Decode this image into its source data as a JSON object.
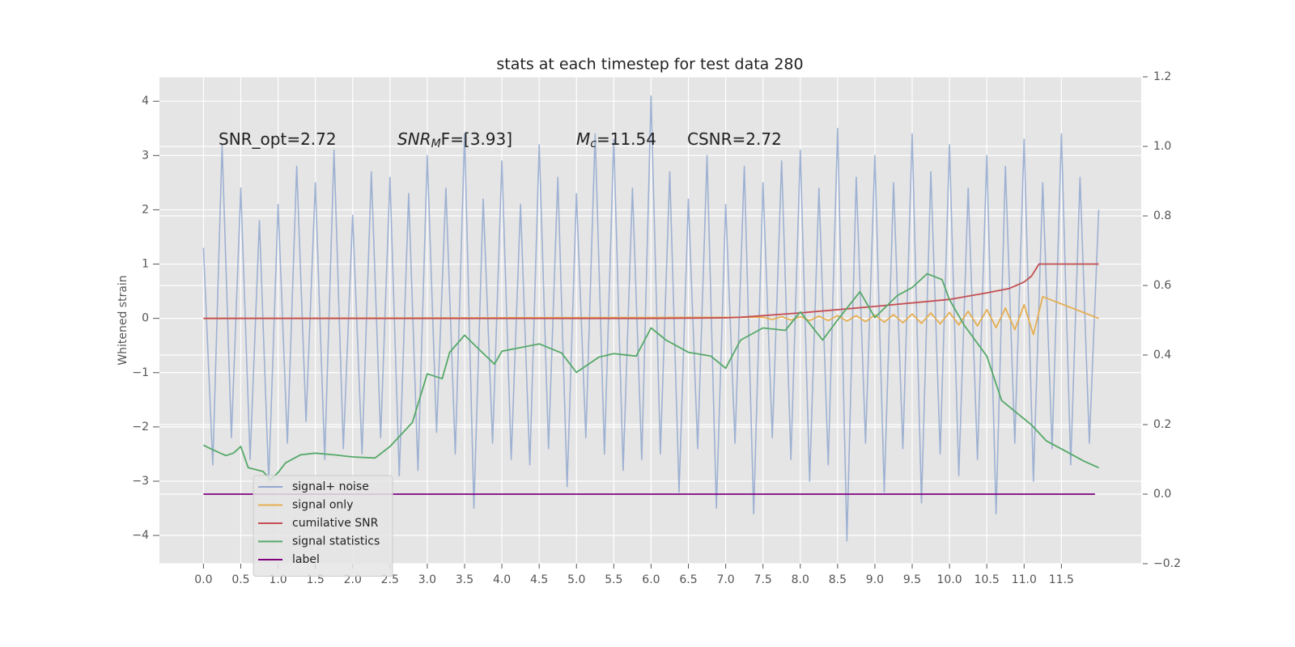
{
  "chart_data": {
    "type": "line",
    "title": "stats at each timestep for test data 280",
    "ylabel": "Whitened strain",
    "annotations": [
      {
        "base": "SNR_opt=2.72"
      },
      {
        "base": "SNR",
        "sub": "M",
        "rest": "F=[3.93]"
      },
      {
        "base": "M",
        "sub": "c",
        "rest": "=11.54"
      },
      {
        "base": "CSNR=2.72"
      }
    ],
    "xlim": [
      -0.59,
      12.57
    ],
    "xticks": [
      {
        "value": 0,
        "label": "0.0"
      },
      0.5,
      {
        "value": 1,
        "label": "1.0"
      },
      1.5,
      {
        "value": 2,
        "label": "2.0"
      },
      2.5,
      {
        "value": 3,
        "label": "3.0"
      },
      3.5,
      {
        "value": 4,
        "label": "4.0"
      },
      4.5,
      {
        "value": 5,
        "label": "5.0"
      },
      5.5,
      {
        "value": 6,
        "label": "6.0"
      },
      6.5,
      {
        "value": 7,
        "label": "7.0"
      },
      7.5,
      {
        "value": 8,
        "label": "8.0"
      },
      8.5,
      {
        "value": 9,
        "label": "9.0"
      },
      9.5,
      {
        "value": 10,
        "label": "10.0"
      },
      10.5,
      {
        "value": 11,
        "label": "11.0"
      },
      11.5
    ],
    "ylim": [
      -4.52,
      4.45
    ],
    "yticks": [
      {
        "value": -4,
        "label": "−4"
      },
      {
        "value": -3,
        "label": "−3"
      },
      {
        "value": -2,
        "label": "−2"
      },
      {
        "value": -1,
        "label": "−1"
      },
      0,
      1,
      2,
      3,
      4
    ],
    "y2lim": [
      -0.2,
      1.2
    ],
    "y2ticks": [
      {
        "value": -0.2,
        "label": "−0.2"
      },
      {
        "value": 0,
        "label": "0.0"
      },
      0.2,
      0.4,
      0.6,
      0.8,
      {
        "value": 1,
        "label": "1.0"
      },
      1.2
    ],
    "grid": true,
    "legend": "lower left",
    "series": [
      {
        "name": "signal+ noise",
        "color": "#92a8cf",
        "x": [
          0,
          0.125,
          0.25,
          0.375,
          0.5,
          0.625,
          0.75,
          0.875,
          1,
          1.125,
          1.25,
          1.375,
          1.5,
          1.625,
          1.75,
          1.875,
          2,
          2.125,
          2.25,
          2.375,
          2.5,
          2.625,
          2.75,
          2.875,
          3,
          3.125,
          3.25,
          3.375,
          3.5,
          3.625,
          3.75,
          3.875,
          4,
          4.125,
          4.25,
          4.375,
          4.5,
          4.625,
          4.75,
          4.875,
          5,
          5.125,
          5.25,
          5.375,
          5.5,
          5.625,
          5.75,
          5.875,
          6,
          6.125,
          6.25,
          6.375,
          6.5,
          6.625,
          6.75,
          6.875,
          7,
          7.125,
          7.25,
          7.375,
          7.5,
          7.625,
          7.75,
          7.875,
          8,
          8.125,
          8.25,
          8.375,
          8.5,
          8.625,
          8.75,
          8.875,
          9,
          9.125,
          9.25,
          9.375,
          9.5,
          9.625,
          9.75,
          9.875,
          10,
          10.125,
          10.25,
          10.375,
          10.5,
          10.625,
          10.75,
          10.875,
          11,
          11.125,
          11.25,
          11.375,
          11.5,
          11.625,
          11.75,
          11.875,
          12
        ],
        "values": [
          1.3,
          -2.7,
          3.2,
          -2.2,
          2.4,
          -2.6,
          1.8,
          -3.0,
          2.1,
          -2.3,
          2.8,
          -1.9,
          2.5,
          -2.6,
          3.1,
          -2.4,
          1.9,
          -2.5,
          2.7,
          -2.2,
          2.6,
          -2.9,
          2.3,
          -2.8,
          3.0,
          -2.1,
          2.4,
          -2.5,
          3.4,
          -3.5,
          2.2,
          -2.3,
          2.9,
          -2.6,
          2.1,
          -2.7,
          3.2,
          -2.4,
          2.6,
          -3.1,
          2.3,
          -2.2,
          3.4,
          -2.5,
          3.3,
          -2.8,
          2.4,
          -2.6,
          4.1,
          -2.5,
          2.7,
          -3.2,
          2.2,
          -2.4,
          3.0,
          -3.5,
          2.1,
          -2.3,
          2.8,
          -3.6,
          2.5,
          -2.2,
          2.9,
          -2.6,
          3.1,
          -3.0,
          2.4,
          -2.7,
          3.5,
          -4.1,
          2.6,
          -2.3,
          3.0,
          -3.2,
          2.5,
          -2.4,
          3.4,
          -3.4,
          2.7,
          -2.5,
          3.2,
          -2.9,
          2.4,
          -2.6,
          3.0,
          -3.6,
          2.8,
          -2.3,
          3.3,
          -3.0,
          2.5,
          -2.4,
          3.4,
          -2.7,
          2.6,
          -2.3,
          2.0
        ]
      },
      {
        "name": "signal only",
        "color": "#e5ae52",
        "x": [
          0,
          7.5,
          7.625,
          7.75,
          7.875,
          8,
          8.125,
          8.25,
          8.375,
          8.5,
          8.625,
          8.75,
          8.875,
          9,
          9.125,
          9.25,
          9.375,
          9.5,
          9.625,
          9.75,
          9.875,
          10,
          10.125,
          10.25,
          10.375,
          10.5,
          10.625,
          10.75,
          10.875,
          11,
          11.125,
          11.25,
          12
        ],
        "values": [
          0,
          0.02,
          -0.02,
          0.03,
          -0.03,
          0.03,
          -0.04,
          0.04,
          -0.04,
          0.05,
          -0.05,
          0.05,
          -0.06,
          0.06,
          -0.07,
          0.07,
          -0.08,
          0.08,
          -0.09,
          0.1,
          -0.1,
          0.11,
          -0.12,
          0.13,
          -0.14,
          0.16,
          -0.17,
          0.19,
          -0.21,
          0.25,
          -0.3,
          0.4,
          0
        ]
      },
      {
        "name": "cumilative SNR",
        "color": "#c44e52",
        "x": [
          0,
          6,
          7,
          7.2,
          8,
          9,
          10,
          10.5,
          10.8,
          11,
          11.1,
          11.2,
          12
        ],
        "values": [
          0,
          0,
          0.01,
          0.02,
          0.1,
          0.22,
          0.35,
          0.47,
          0.55,
          0.67,
          0.78,
          1.0,
          1.0
        ]
      },
      {
        "name": "signal statistics",
        "color": "#55a868",
        "axis": "y2",
        "x": [
          0,
          0.1,
          0.3,
          0.4,
          0.5,
          0.6,
          0.8,
          0.9,
          1.0,
          1.1,
          1.3,
          1.5,
          1.75,
          2.0,
          2.3,
          2.5,
          2.8,
          3.0,
          3.2,
          3.3,
          3.5,
          3.7,
          3.9,
          4.0,
          4.5,
          4.8,
          5.0,
          5.3,
          5.5,
          5.8,
          6.0,
          6.2,
          6.5,
          6.8,
          7.0,
          7.2,
          7.5,
          7.8,
          8.0,
          8.3,
          8.5,
          8.8,
          9.0,
          9.3,
          9.5,
          9.7,
          9.9,
          10.0,
          10.2,
          10.5,
          10.7,
          10.9,
          11.1,
          11.3,
          11.5,
          11.8,
          12.0
        ],
        "values": [
          0.141,
          0.13,
          0.111,
          0.118,
          0.137,
          0.076,
          0.065,
          0.041,
          0.062,
          0.09,
          0.113,
          0.118,
          0.113,
          0.107,
          0.104,
          0.137,
          0.206,
          0.346,
          0.332,
          0.408,
          0.457,
          0.415,
          0.374,
          0.411,
          0.432,
          0.406,
          0.35,
          0.394,
          0.404,
          0.397,
          0.478,
          0.443,
          0.408,
          0.397,
          0.362,
          0.443,
          0.478,
          0.471,
          0.524,
          0.443,
          0.501,
          0.582,
          0.508,
          0.571,
          0.594,
          0.634,
          0.617,
          0.559,
          0.485,
          0.397,
          0.269,
          0.234,
          0.199,
          0.153,
          0.13,
          0.095,
          0.076
        ]
      },
      {
        "name": "label",
        "color": "#800080",
        "axis": "y2",
        "x": [
          0,
          11.95
        ],
        "values": [
          0,
          0
        ]
      }
    ]
  }
}
